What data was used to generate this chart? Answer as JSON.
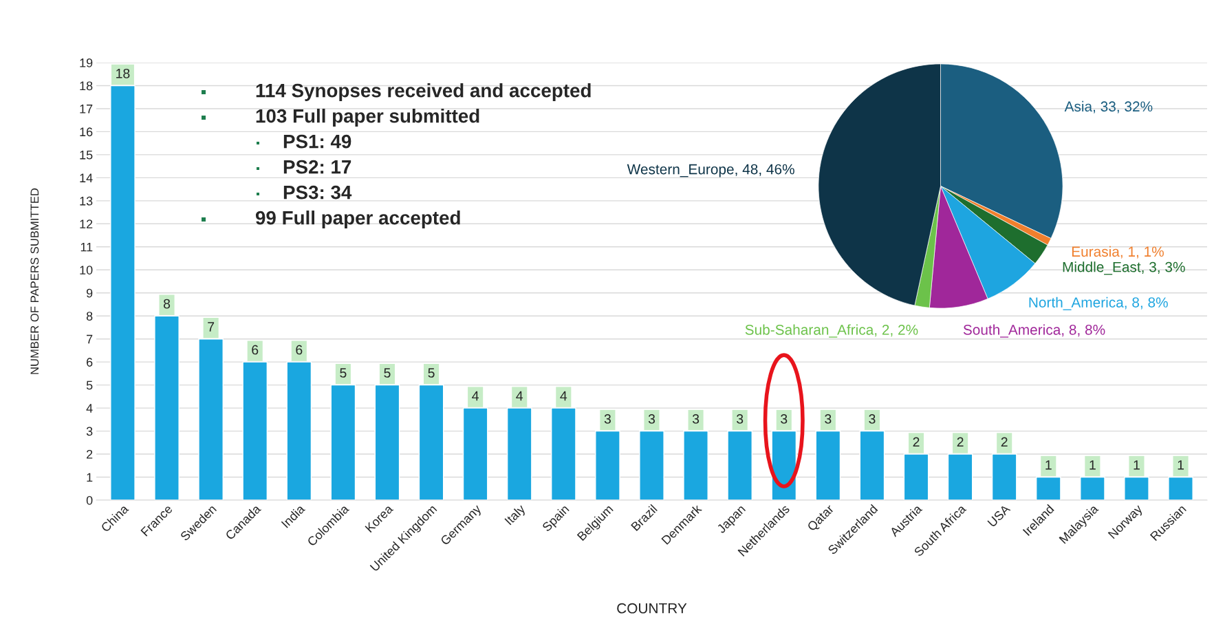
{
  "chart_data": [
    {
      "type": "bar",
      "xlabel": "COUNTRY",
      "ylabel": "NUMBER OF PAPERS SUBMITTED",
      "categories": [
        "China",
        "France",
        "Sweden",
        "Canada",
        "India",
        "Colombia",
        "Korea",
        "United Kingdom",
        "Germany",
        "Italy",
        "Spain",
        "Belgium",
        "Brazil",
        "Denmark",
        "Japan",
        "Netherlands",
        "Qatar",
        "Switzerland",
        "Austria",
        "South Africa",
        "USA",
        "Ireland",
        "Malaysia",
        "Norway",
        "Russian"
      ],
      "values": [
        18,
        8,
        7,
        6,
        6,
        5,
        5,
        5,
        4,
        4,
        4,
        3,
        3,
        3,
        3,
        3,
        3,
        3,
        2,
        2,
        2,
        1,
        1,
        1,
        1
      ],
      "color": "#1aa7e0",
      "ylim": [
        0,
        19
      ],
      "yticks": [
        0,
        1,
        2,
        3,
        4,
        5,
        6,
        7,
        8,
        9,
        10,
        11,
        12,
        13,
        14,
        15,
        16,
        17,
        18,
        19
      ],
      "grid": "y",
      "data_labels": true,
      "annotations": [
        "114 Synopses received and accepted",
        "103 Full paper submitted",
        "PS1: 49",
        "PS2: 17",
        "PS3: 34",
        "99 Full paper accepted"
      ]
    },
    {
      "type": "pie",
      "categories": [
        "Asia",
        "Eurasia",
        "Middle_East",
        "North_America",
        "South_America",
        "Sub-Saharan_Africa",
        "Western_Europe"
      ],
      "values": [
        33,
        1,
        3,
        8,
        8,
        2,
        48
      ],
      "value_labels": [
        "33, 32%",
        "1, 1%",
        "3, 3%",
        "8, 8%",
        "8, 8%",
        "2, 2%",
        "48, 46%"
      ],
      "colors": [
        "#1b5e80",
        "#f07f2d",
        "#1e6e2e",
        "#1ea5e0",
        "#a0279a",
        "#6cc24a",
        "#0e3448"
      ]
    }
  ]
}
